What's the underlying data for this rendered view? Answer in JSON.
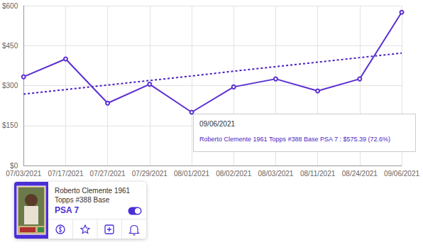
{
  "chart_data": {
    "type": "line",
    "categories": [
      "07/03/2021",
      "07/17/2021",
      "07/27/2021",
      "07/29/2021",
      "08/01/2021",
      "08/02/2021",
      "08/03/2021",
      "08/11/2021",
      "08/24/2021",
      "09/06/2021"
    ],
    "series": [
      {
        "color": "#5b2fd1",
        "values": [
          333,
          400,
          234,
          305,
          200,
          295,
          325,
          280,
          325,
          575.39
        ],
        "marker": "circle",
        "line_style": "solid"
      },
      {
        "color": "#4a1fc4",
        "values": [
          268,
          285,
          302,
          319,
          336,
          354,
          371,
          388,
          405,
          422
        ],
        "marker": "none",
        "line_style": "dotted"
      }
    ],
    "ylim": [
      0,
      600
    ],
    "yticks": [
      {
        "value": 0,
        "label": "$0"
      },
      {
        "value": 150,
        "label": "$150"
      },
      {
        "value": 300,
        "label": "$300"
      },
      {
        "value": 450,
        "label": "$450"
      },
      {
        "value": 600,
        "label": "$600"
      }
    ],
    "grid": true,
    "annotation": {
      "title": "09/06/2021",
      "text": "Roberto Clemente 1961 Topps #388 Base PSA 7 : $575.39 (72.6%)"
    }
  },
  "card": {
    "title": "Roberto Clemente 1961 Topps #388 Base",
    "grade": "PSA 7"
  }
}
